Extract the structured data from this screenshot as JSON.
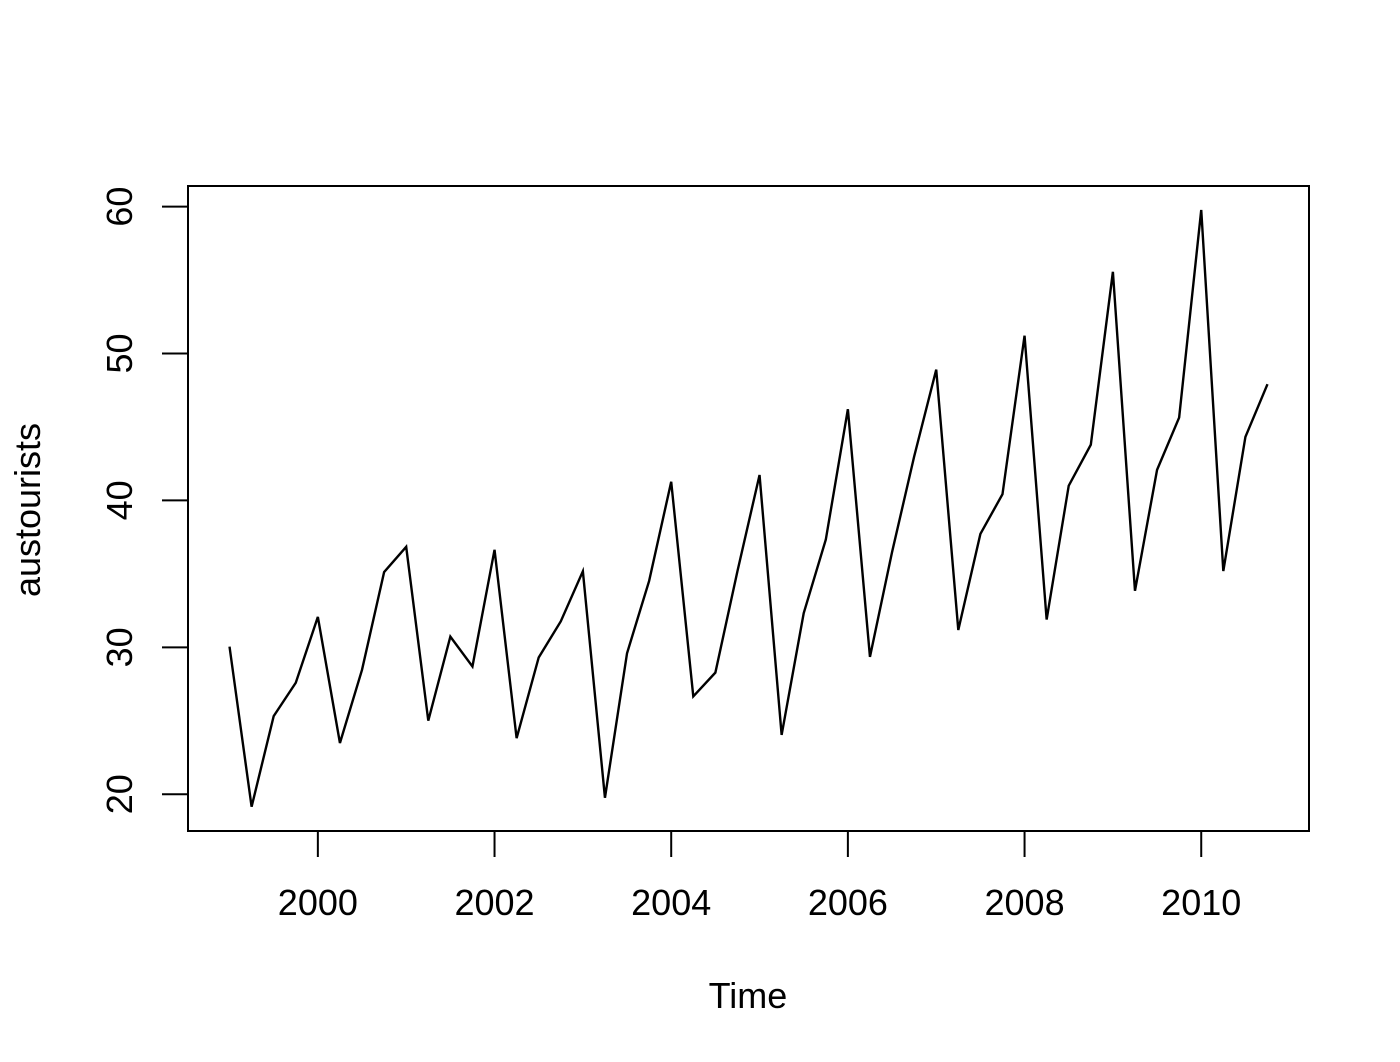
{
  "chart_data": {
    "type": "line",
    "title": "",
    "xlabel": "Time",
    "ylabel": "austourists",
    "xlim": [
      1998.53,
      2011.22
    ],
    "ylim": [
      17.5,
      61.4
    ],
    "xticks": [
      2000,
      2002,
      2004,
      2006,
      2008,
      2010
    ],
    "xtick_labels": [
      "2000",
      "2002",
      "2004",
      "2006",
      "2008",
      "2010"
    ],
    "yticks": [
      20,
      30,
      40,
      50,
      60
    ],
    "ytick_labels": [
      "20",
      "30",
      "40",
      "50",
      "60"
    ],
    "grid": false,
    "legend": "none",
    "colors": {
      "line": "#000000",
      "background": "#ffffff"
    },
    "series": [
      {
        "start": 1999.0,
        "frequency": 4,
        "values": [
          30.05,
          19.15,
          25.32,
          27.59,
          32.07,
          23.49,
          28.47,
          35.12,
          36.84,
          25.01,
          30.73,
          28.7,
          36.64,
          23.82,
          29.31,
          31.77,
          35.18,
          19.76,
          29.6,
          34.52,
          41.27,
          26.66,
          28.28,
          35.19,
          41.73,
          24.04,
          32.33,
          37.33,
          46.21,
          29.35,
          36.48,
          42.98,
          48.9,
          31.18,
          37.72,
          40.42,
          51.21,
          31.89,
          41.0,
          43.79,
          55.56,
          33.85,
          42.08,
          45.64,
          59.77,
          35.19,
          44.32,
          47.91
        ]
      }
    ]
  }
}
